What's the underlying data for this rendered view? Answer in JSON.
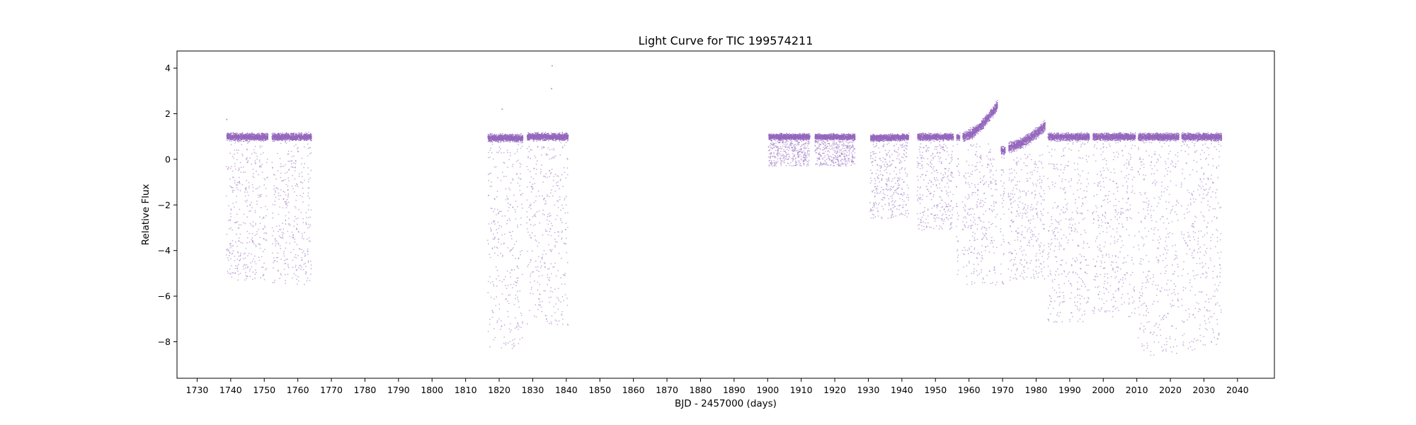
{
  "chart_data": {
    "type": "scatter",
    "title": "Light Curve for TIC 199574211",
    "xlabel": "BJD - 2457000 (days)",
    "ylabel": "Relative Flux",
    "xlim": [
      1724,
      2051
    ],
    "ylim": [
      -9.6,
      4.75
    ],
    "xticks": [
      1730,
      1740,
      1750,
      1760,
      1770,
      1780,
      1790,
      1800,
      1810,
      1820,
      1830,
      1840,
      1850,
      1860,
      1870,
      1880,
      1890,
      1900,
      1910,
      1920,
      1930,
      1940,
      1950,
      1960,
      1970,
      1980,
      1990,
      2000,
      2010,
      2020,
      2030,
      2040
    ],
    "yticks": [
      4,
      2,
      0,
      -2,
      -4,
      -6,
      -8
    ],
    "grid": false,
    "color": "#9467bd",
    "segments": [
      {
        "x": [
          1738.7,
          1751.0
        ],
        "baseline": [
          1.0,
          1.0
        ],
        "band": 0.22,
        "dip_min": -5.3
      },
      {
        "x": [
          1752.2,
          1764.0
        ],
        "baseline": [
          1.0,
          1.0
        ],
        "band": 0.22,
        "dip_min": -5.5
      },
      {
        "x": [
          1816.5,
          1827.0
        ],
        "baseline": [
          0.95,
          0.95
        ],
        "band": 0.22,
        "dip_min": -8.3
      },
      {
        "x": [
          1828.2,
          1840.5
        ],
        "baseline": [
          1.0,
          1.0
        ],
        "band": 0.22,
        "dip_min": -7.3
      },
      {
        "x": [
          1900.2,
          1912.5
        ],
        "baseline": [
          1.0,
          1.0
        ],
        "band": 0.18,
        "dip_min": -0.3
      },
      {
        "x": [
          1914.0,
          1926.0
        ],
        "baseline": [
          1.0,
          1.0
        ],
        "band": 0.18,
        "dip_min": -0.3
      },
      {
        "x": [
          1930.5,
          1942.0
        ],
        "baseline": [
          0.95,
          1.0
        ],
        "band": 0.2,
        "dip_min": -2.6
      },
      {
        "x": [
          1944.5,
          1955.3
        ],
        "baseline": [
          1.0,
          1.0
        ],
        "band": 0.2,
        "dip_min": -3.1
      },
      {
        "x": [
          1956.2,
          1957.2
        ],
        "baseline": [
          1.0,
          1.0
        ],
        "band": 0.2,
        "dip_min": -5.1
      },
      {
        "x": [
          1958.0,
          1968.4
        ],
        "baseline": [
          1.0,
          2.4
        ],
        "band": 0.3,
        "dip_min": -5.5
      },
      {
        "x": [
          1969.4,
          1970.7
        ],
        "baseline": [
          0.4,
          0.4
        ],
        "band": 0.25,
        "dip_min": -5.5
      },
      {
        "x": [
          1971.7,
          1982.6
        ],
        "baseline": [
          0.55,
          1.5
        ],
        "band": 0.3,
        "dip_min": -5.3
      },
      {
        "x": [
          1983.4,
          1995.8
        ],
        "baseline": [
          1.0,
          1.0
        ],
        "band": 0.22,
        "dip_min": -7.2
      },
      {
        "x": [
          1996.8,
          2009.5
        ],
        "baseline": [
          1.0,
          1.0
        ],
        "band": 0.22,
        "dip_min": -6.9
      },
      {
        "x": [
          2010.3,
          2022.5
        ],
        "baseline": [
          1.0,
          1.0
        ],
        "band": 0.22,
        "dip_min": -8.6
      },
      {
        "x": [
          2023.2,
          2035.2
        ],
        "baseline": [
          1.0,
          1.0
        ],
        "band": 0.22,
        "dip_min": -8.4
      }
    ],
    "outliers": [
      {
        "x": 1835.8,
        "y": 4.1
      },
      {
        "x": 1835.6,
        "y": 3.1
      },
      {
        "x": 1820.9,
        "y": 2.2
      },
      {
        "x": 1738.8,
        "y": 1.75
      }
    ]
  }
}
